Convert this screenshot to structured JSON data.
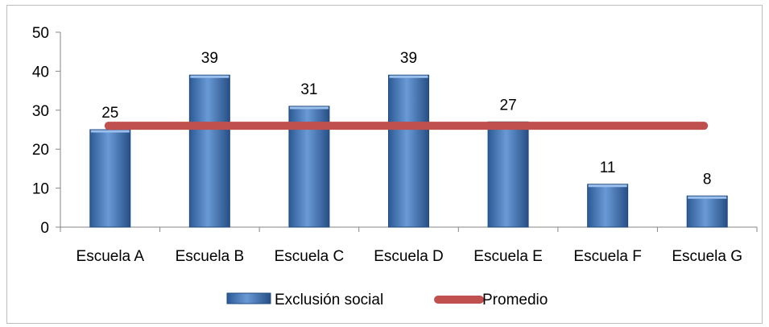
{
  "chart_data": {
    "type": "bar",
    "categories": [
      "Escuela A",
      "Escuela B",
      "Escuela C",
      "Escuela D",
      "Escuela E",
      "Escuela F",
      "Escuela G"
    ],
    "series": [
      {
        "name": "Exclusión social",
        "type": "bar",
        "values": [
          25,
          39,
          31,
          39,
          27,
          11,
          8
        ],
        "color": "#4f81bd"
      },
      {
        "name": "Promedio",
        "type": "line",
        "values": [
          26,
          26,
          26,
          26,
          26,
          26,
          26
        ],
        "color": "#c0504d"
      }
    ],
    "ylim": [
      0,
      50
    ],
    "yticks": [
      0,
      10,
      20,
      30,
      40,
      50
    ],
    "data_labels": [
      "25",
      "39",
      "31",
      "39",
      "27",
      "11",
      "8"
    ],
    "grid": false,
    "legend_position": "bottom"
  }
}
